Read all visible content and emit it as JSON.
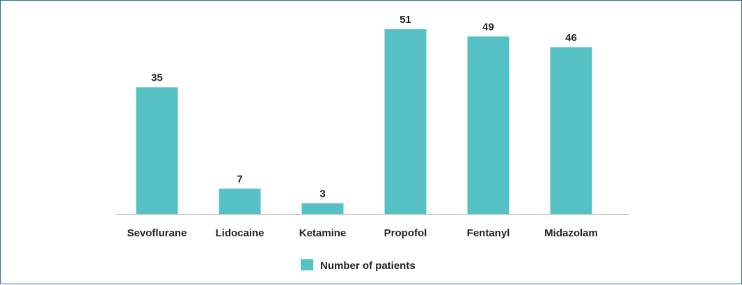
{
  "chart_data": {
    "type": "bar",
    "categories": [
      "Sevoflurane",
      "Lidocaine",
      "Ketamine",
      "Propofol",
      "Fentanyl",
      "Midazolam"
    ],
    "series": [
      {
        "name": "Number of patients",
        "values": [
          35,
          7,
          3,
          51,
          49,
          46
        ],
        "color": "#56c1c5"
      }
    ],
    "data_labels": [
      "35",
      "7",
      "3",
      "51",
      "49",
      "46"
    ],
    "ylim": [
      0,
      51
    ],
    "grid": false,
    "legend_position": "bottom-center",
    "axis_color": "#c8c8c8",
    "border_color": "#2a6f97"
  }
}
